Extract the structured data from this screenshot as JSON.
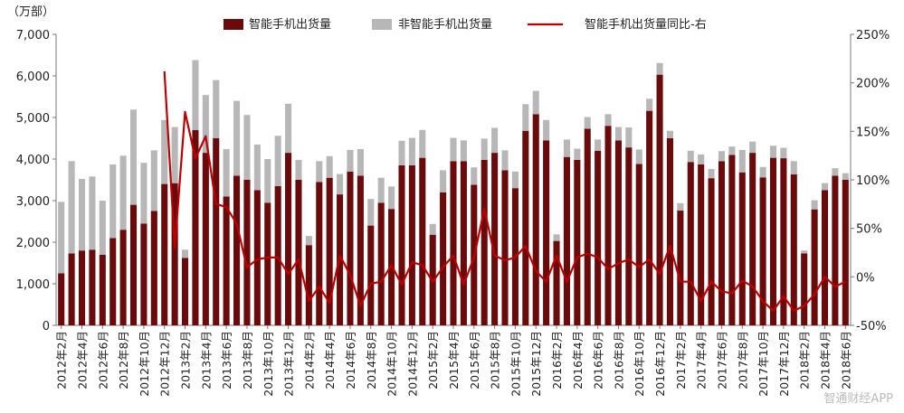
{
  "chart_data": {
    "type": "bar",
    "unit_label": "（万部）",
    "ylim": [
      0,
      7000
    ],
    "yticks": [
      "0",
      "1,000",
      "2,000",
      "3,000",
      "4,000",
      "5,000",
      "6,000",
      "7,000"
    ],
    "y2lim": [
      -50,
      250
    ],
    "y2ticks": [
      "-50%",
      "0%",
      "50%",
      "100%",
      "150%",
      "200%",
      "250%"
    ],
    "legend_position": "top",
    "colors": {
      "smart": "#6b0a0a",
      "nonsmart": "#b7b7b7",
      "yoy_line": "#c00000"
    },
    "categories": [
      "2012年2月",
      "2012年3月",
      "2012年4月",
      "2012年5月",
      "2012年6月",
      "2012年7月",
      "2012年8月",
      "2012年9月",
      "2012年10月",
      "2012年11月",
      "2012年12月",
      "2013年1月",
      "2013年2月",
      "2013年3月",
      "2013年4月",
      "2013年5月",
      "2013年6月",
      "2013年7月",
      "2013年8月",
      "2013年9月",
      "2013年10月",
      "2013年11月",
      "2013年12月",
      "2014年1月",
      "2014年2月",
      "2014年3月",
      "2014年4月",
      "2014年5月",
      "2014年6月",
      "2014年7月",
      "2014年8月",
      "2014年9月",
      "2014年10月",
      "2014年11月",
      "2014年12月",
      "2015年1月",
      "2015年2月",
      "2015年3月",
      "2015年4月",
      "2015年5月",
      "2015年6月",
      "2015年7月",
      "2015年8月",
      "2015年9月",
      "2015年10月",
      "2015年11月",
      "2015年12月",
      "2016年1月",
      "2016年2月",
      "2016年3月",
      "2016年4月",
      "2016年5月",
      "2016年6月",
      "2016年7月",
      "2016年8月",
      "2016年9月",
      "2016年10月",
      "2016年11月",
      "2016年12月",
      "2017年1月",
      "2017年2月",
      "2017年3月",
      "2017年4月",
      "2017年5月",
      "2017年6月",
      "2017年7月",
      "2017年8月",
      "2017年9月",
      "2017年10月",
      "2017年11月",
      "2017年12月",
      "2018年1月",
      "2018年2月",
      "2018年3月",
      "2018年4月",
      "2018年5月",
      "2018年6月"
    ],
    "x_tick_labels": [
      "2012年2月",
      "2012年4月",
      "2012年6月",
      "2012年8月",
      "2012年10月",
      "2012年12月",
      "2013年2月",
      "2013年4月",
      "2013年6月",
      "2013年8月",
      "2013年10月",
      "2013年12月",
      "2014年2月",
      "2014年4月",
      "2014年6月",
      "2014年8月",
      "2014年10月",
      "2014年12月",
      "2015年2月",
      "2015年4月",
      "2015年6月",
      "2015年8月",
      "2015年10月",
      "2015年12月",
      "2016年2月",
      "2016年4月",
      "2016年6月",
      "2016年8月",
      "2016年10月",
      "2016年12月",
      "2017年2月",
      "2017年4月",
      "2017年6月",
      "2017年8月",
      "2017年10月",
      "2017年12月",
      "2018年2月",
      "2018年4月",
      "2018年6月"
    ],
    "series": [
      {
        "name": "智能手机出货量",
        "type": "bar",
        "axis": "left",
        "values": [
          1250,
          1730,
          1800,
          1820,
          1700,
          2100,
          2300,
          2900,
          2450,
          2750,
          3400,
          3420,
          1620,
          4700,
          4150,
          4500,
          3100,
          3600,
          3500,
          3250,
          2950,
          3350,
          4150,
          3500,
          1930,
          3450,
          3550,
          3150,
          3700,
          3600,
          2400,
          2950,
          2800,
          3850,
          3850,
          4030,
          2180,
          3200,
          3950,
          3950,
          3380,
          3980,
          4150,
          3730,
          3300,
          4680,
          5080,
          4450,
          2030,
          4050,
          3980,
          4730,
          4200,
          4800,
          4450,
          4280,
          3880,
          5160,
          6030,
          4500,
          2760,
          3930,
          3870,
          3540,
          3950,
          4100,
          3680,
          4150,
          3560,
          4030,
          4020,
          3630,
          1730,
          2790,
          3250,
          3600,
          3500
        ]
      },
      {
        "name": "非智能手机出货量",
        "type": "bar",
        "axis": "left",
        "values": [
          1720,
          2220,
          1720,
          1760,
          1300,
          1770,
          1780,
          2290,
          1460,
          1460,
          1540,
          1350,
          200,
          1680,
          1390,
          1400,
          1140,
          1800,
          1560,
          1100,
          1050,
          1210,
          1180,
          480,
          220,
          500,
          520,
          490,
          520,
          640,
          640,
          600,
          540,
          590,
          660,
          670,
          260,
          530,
          560,
          500,
          420,
          510,
          600,
          480,
          400,
          640,
          560,
          490,
          160,
          420,
          270,
          280,
          270,
          280,
          320,
          480,
          350,
          290,
          280,
          180,
          180,
          270,
          240,
          220,
          240,
          200,
          540,
          270,
          250,
          290,
          250,
          320,
          70,
          220,
          170,
          180,
          160
        ]
      },
      {
        "name": "智能手机出货量同比-右",
        "type": "line",
        "axis": "right",
        "values": [
          null,
          null,
          null,
          null,
          null,
          null,
          null,
          null,
          null,
          null,
          212,
          30,
          170,
          122,
          145,
          75,
          72,
          55,
          10,
          18,
          20,
          20,
          3,
          18,
          -25,
          -10,
          -27,
          22,
          2,
          -30,
          -7,
          -5,
          12,
          -8,
          15,
          12,
          -5,
          10,
          22,
          -8,
          20,
          70,
          22,
          17,
          20,
          32,
          6,
          -5,
          22,
          -5,
          20,
          24,
          20,
          8,
          14,
          18,
          10,
          18,
          3,
          32,
          -5,
          -5,
          -25,
          -5,
          -15,
          -17,
          -4,
          -10,
          -25,
          -35,
          -20,
          -35,
          -30,
          -18,
          0,
          -10,
          -5
        ]
      }
    ]
  },
  "watermark": "智通财经APP"
}
